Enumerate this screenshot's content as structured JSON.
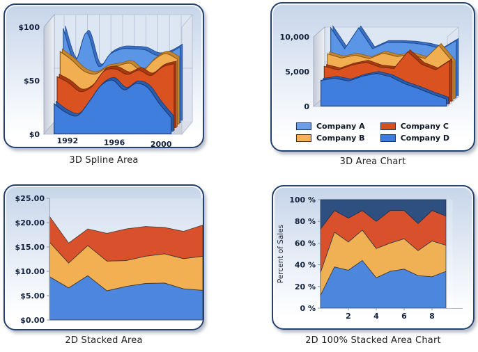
{
  "chart_data": [
    {
      "type": "area",
      "variant": "3d-spline-area",
      "caption": "3D Spline Area",
      "y_ticks": [
        "$0",
        "$50",
        "$100"
      ],
      "y_max": 100,
      "x_ticks": [
        {
          "label": "1992",
          "index": 1
        },
        {
          "label": "1996",
          "index": 5
        },
        {
          "label": "2000",
          "index": 9
        }
      ],
      "grid": "vertical-and-horizontal-backwall",
      "legend_position": "none",
      "series": [
        {
          "name": "back-light-blue",
          "depth": 0.92,
          "color": "#5b95e6",
          "dark": "#3b6fc4",
          "stroke": "#1e4d94",
          "values": [
            88,
            58,
            84,
            53,
            64,
            69,
            69,
            68,
            63,
            65,
            71
          ]
        },
        {
          "name": "orange",
          "depth": 0.62,
          "color": "#f1af52",
          "dark": "#c58430",
          "stroke": "#8c5a17",
          "values": [
            70,
            62,
            52,
            49,
            55,
            57,
            59,
            52,
            62,
            68,
            63
          ]
        },
        {
          "name": "red",
          "depth": 0.33,
          "color": "#d9521f",
          "dark": "#a83a10",
          "stroke": "#7c2a0a",
          "values": [
            50,
            44,
            36,
            41,
            55,
            57,
            52,
            56,
            51,
            59,
            62
          ]
        },
        {
          "name": "front-blue",
          "depth": 0.04,
          "color": "#3f7edd",
          "dark": "#2b5cab",
          "stroke": "#173c78",
          "values": [
            28,
            20,
            17,
            30,
            45,
            50,
            41,
            47,
            43,
            28,
            15
          ]
        }
      ]
    },
    {
      "type": "area",
      "variant": "3d-area",
      "caption": "3D Area Chart",
      "y_ticks": [
        "0",
        "5,000",
        "10,000"
      ],
      "y_max": 10000,
      "x_ticks": [],
      "legend_position": "bottom",
      "legend": [
        {
          "label": "Company A",
          "color": "#6b9ce6"
        },
        {
          "label": "Company B",
          "color": "#f4b35a"
        },
        {
          "label": "Company C",
          "color": "#d84f1f"
        },
        {
          "label": "Company D",
          "color": "#3a7de0"
        }
      ],
      "series": [
        {
          "name": "Company A",
          "depth": 0.92,
          "color": "#5b95e6",
          "dark": "#3b6fc4",
          "stroke": "#1e4d94",
          "values": [
            10000,
            7000,
            10000,
            7000,
            7900,
            7900,
            7800,
            7500,
            7000,
            8200
          ]
        },
        {
          "name": "Company B",
          "depth": 0.62,
          "color": "#f1af52",
          "dark": "#c58430",
          "stroke": "#8c5a17",
          "values": [
            6700,
            6100,
            6500,
            6000,
            6800,
            6300,
            6600,
            6000,
            7900,
            5500
          ]
        },
        {
          "name": "Company C",
          "depth": 0.33,
          "color": "#d9521f",
          "dark": "#a83a10",
          "stroke": "#7c2a0a",
          "values": [
            5300,
            4800,
            5500,
            5900,
            5200,
            5000,
            7400,
            5600,
            4800,
            6100
          ]
        },
        {
          "name": "Company D",
          "depth": 0.04,
          "color": "#3f7edd",
          "dark": "#2b5cab",
          "stroke": "#173c78",
          "values": [
            3700,
            4000,
            3600,
            4300,
            4700,
            4200,
            3200,
            2500,
            1700,
            1000
          ]
        }
      ]
    },
    {
      "type": "area",
      "variant": "2d-stacked-area",
      "caption": "2D Stacked Area",
      "y_ticks": [
        "$0.00",
        "$5.00",
        "$10.00",
        "$15.00",
        "$20.00",
        "$25.00"
      ],
      "y_max": 25,
      "x_ticks": [],
      "legend_position": "none",
      "series": [
        {
          "name": "blue-bottom",
          "color": "#4c86de",
          "stroke": "#33302a",
          "values": [
            8.9,
            6.6,
            9.1,
            6.0,
            6.9,
            7.5,
            7.6,
            6.4,
            6.1
          ]
        },
        {
          "name": "orange-middle",
          "color": "#f2b052",
          "stroke": "#33302a",
          "values": [
            7.1,
            5.1,
            6.2,
            6.1,
            5.3,
            5.6,
            6.0,
            6.2,
            7.0
          ]
        },
        {
          "name": "red-top",
          "color": "#d9512c",
          "stroke": "#33302a",
          "values": [
            5.3,
            4.1,
            3.4,
            5.7,
            6.5,
            6.1,
            5.4,
            5.6,
            6.4
          ]
        }
      ]
    },
    {
      "type": "area",
      "variant": "2d-100pct-stacked-area",
      "caption": "2D 100% Stacked Area Chart",
      "y_axis_title": "Percent of Sales",
      "y_ticks": [
        "0 %",
        "20 %",
        "40 %",
        "60 %",
        "80 %",
        "100 %"
      ],
      "y_max": 100,
      "x_ticks": [
        {
          "label": "2",
          "x": 2
        },
        {
          "label": "4",
          "x": 4
        },
        {
          "label": "6",
          "x": 6
        },
        {
          "label": "8",
          "x": 8
        }
      ],
      "legend_position": "none",
      "series": [
        {
          "name": "blue",
          "color": "#4c87dd",
          "stroke": "#2e3442",
          "values": [
            12,
            38,
            35,
            44,
            28,
            34,
            36,
            30,
            29,
            34
          ]
        },
        {
          "name": "orange",
          "color": "#f0b054",
          "stroke": "#2e3442",
          "values": [
            21,
            32,
            26,
            28,
            27,
            26,
            28,
            23,
            33,
            24
          ]
        },
        {
          "name": "red",
          "color": "#d9512c",
          "stroke": "#2e3442",
          "values": [
            40,
            20,
            22,
            18,
            25,
            30,
            26,
            25,
            28,
            27
          ]
        },
        {
          "name": "navy",
          "color": "#2e5080",
          "stroke": "#1c2c44",
          "values": [
            27,
            10,
            17,
            10,
            20,
            10,
            10,
            22,
            10,
            15
          ]
        }
      ]
    }
  ],
  "colors": {
    "panel_border": "#24416f",
    "panel_top": "#c7d5ea",
    "back_wall": "#dde6f3",
    "left_wall": "#c3c9d6",
    "floor": "#ccd2de",
    "grid_line": "#b4bfd2",
    "tick_text": "#14213d"
  }
}
